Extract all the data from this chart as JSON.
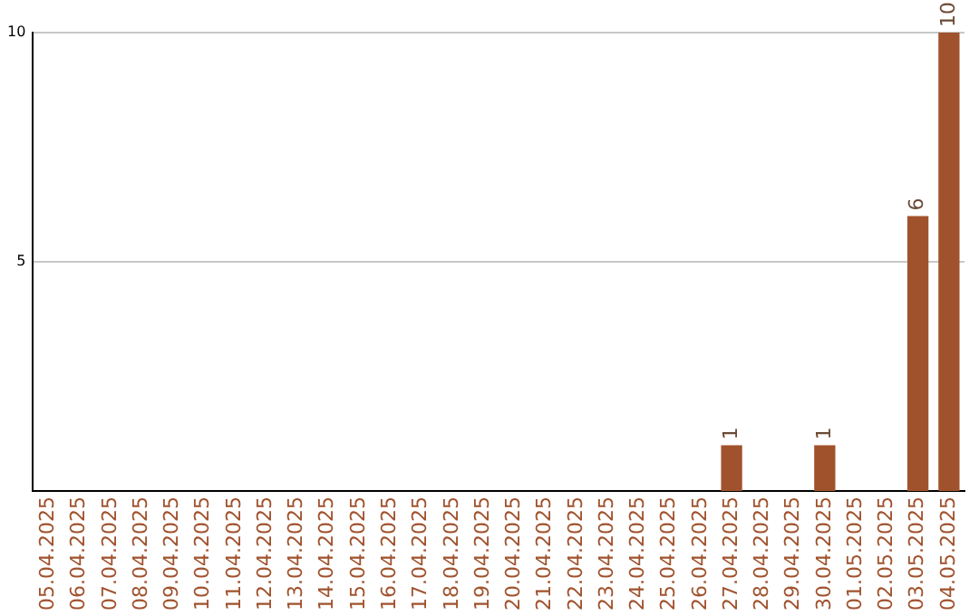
{
  "chart_data": {
    "type": "bar",
    "categories": [
      "05.04.2025",
      "06.04.2025",
      "07.04.2025",
      "08.04.2025",
      "09.04.2025",
      "10.04.2025",
      "11.04.2025",
      "12.04.2025",
      "13.04.2025",
      "14.04.2025",
      "15.04.2025",
      "16.04.2025",
      "17.04.2025",
      "18.04.2025",
      "19.04.2025",
      "20.04.2025",
      "21.04.2025",
      "22.04.2025",
      "23.04.2025",
      "24.04.2025",
      "25.04.2025",
      "26.04.2025",
      "27.04.2025",
      "28.04.2025",
      "29.04.2025",
      "30.04.2025",
      "01.05.2025",
      "02.05.2025",
      "03.05.2025",
      "04.05.2025"
    ],
    "values": [
      0,
      0,
      0,
      0,
      0,
      0,
      0,
      0,
      0,
      0,
      0,
      0,
      0,
      0,
      0,
      0,
      0,
      0,
      0,
      0,
      0,
      0,
      1,
      0,
      0,
      1,
      0,
      0,
      6,
      10
    ],
    "value_labels": [
      null,
      null,
      null,
      null,
      null,
      null,
      null,
      null,
      null,
      null,
      null,
      null,
      null,
      null,
      null,
      null,
      null,
      null,
      null,
      null,
      null,
      null,
      "1",
      null,
      null,
      "1",
      null,
      null,
      "6",
      "10"
    ],
    "color": "#a0522d",
    "ylim": [
      0,
      10
    ],
    "yticks": [
      5,
      10
    ],
    "grid": "y",
    "legend": false
  }
}
